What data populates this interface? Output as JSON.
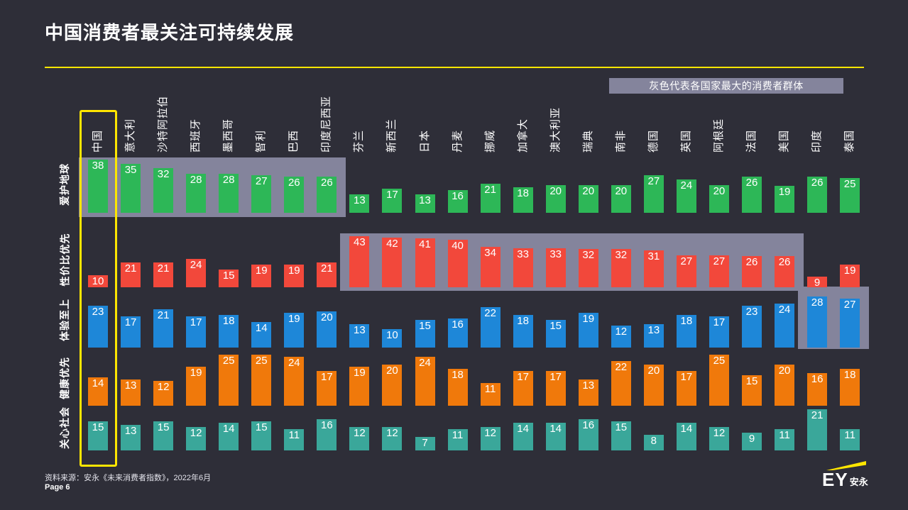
{
  "slide": {
    "title": "中国消费者最关注可持续发展",
    "legend_note": "灰色代表各国家最大的消费者群体",
    "source": "资料来源：安永《未来消费者指数》，2022年6月",
    "page": "Page 6",
    "logo_ey": "EY",
    "logo_cn": "安永"
  },
  "chart_data": {
    "type": "bar",
    "title": "中国消费者最关注可持续发展",
    "note": "灰色代表各国家最大的消费者群体",
    "grid": false,
    "value_labels": true,
    "band_color": "#84849c",
    "highlight_box_color": "#ffe600",
    "highlighted_category": "中国",
    "categories": [
      "中国",
      "意大利",
      "沙特阿拉伯",
      "西班牙",
      "墨西哥",
      "智利",
      "巴西",
      "印度尼西亚",
      "芬兰",
      "新西兰",
      "日本",
      "丹麦",
      "挪威",
      "加拿大",
      "澳大利亚",
      "瑞典",
      "南非",
      "德国",
      "英国",
      "阿根廷",
      "法国",
      "美国",
      "印度",
      "泰国"
    ],
    "series": [
      {
        "name": "爱护地球",
        "color": "#2db757",
        "values": [
          38,
          35,
          32,
          28,
          28,
          27,
          26,
          26,
          13,
          17,
          13,
          16,
          21,
          18,
          20,
          20,
          20,
          27,
          24,
          20,
          26,
          19,
          26,
          25
        ],
        "gray_band_columns": [
          0,
          7
        ]
      },
      {
        "name": "性价比优先",
        "color": "#f2483b",
        "values": [
          10,
          21,
          21,
          24,
          15,
          19,
          19,
          21,
          43,
          42,
          41,
          40,
          34,
          33,
          33,
          32,
          32,
          31,
          27,
          27,
          26,
          26,
          9,
          19
        ],
        "gray_band_columns": [
          8,
          21
        ]
      },
      {
        "name": "体验至上",
        "color": "#1e87d8",
        "values": [
          23,
          17,
          21,
          17,
          18,
          14,
          19,
          20,
          13,
          10,
          15,
          16,
          22,
          18,
          15,
          19,
          12,
          13,
          18,
          17,
          23,
          24,
          28,
          27
        ],
        "gray_band_columns": [
          22,
          23
        ]
      },
      {
        "name": "健康优先",
        "color": "#f0790b",
        "values": [
          14,
          13,
          12,
          19,
          25,
          25,
          24,
          17,
          19,
          20,
          24,
          18,
          11,
          17,
          17,
          13,
          22,
          20,
          17,
          25,
          15,
          20,
          16,
          18
        ],
        "gray_band_columns": null
      },
      {
        "name": "关心社会",
        "color": "#3aa79a",
        "values": [
          15,
          13,
          15,
          12,
          14,
          15,
          11,
          16,
          12,
          12,
          7,
          11,
          12,
          14,
          14,
          16,
          15,
          8,
          14,
          12,
          9,
          11,
          21,
          11
        ],
        "gray_band_columns": null
      }
    ]
  }
}
